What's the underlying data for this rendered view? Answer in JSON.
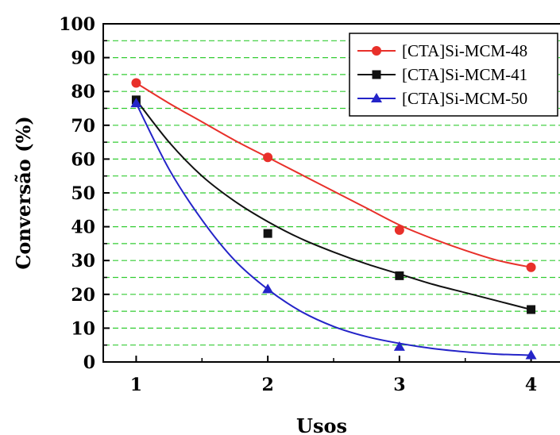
{
  "chart_data": {
    "type": "scatter",
    "xlabel": "Usos",
    "ylabel": "Conversão (%)",
    "xlim": [
      0.75,
      4.25
    ],
    "ylim": [
      0,
      100
    ],
    "x_ticks": [
      "1",
      "2",
      "3",
      "4"
    ],
    "y_ticks": [
      "0",
      "10",
      "20",
      "30",
      "40",
      "50",
      "60",
      "70",
      "80",
      "90",
      "100"
    ],
    "grid": "dashed-green-horizontal",
    "legend_position": "top-right",
    "series": [
      {
        "name": "[CTA]Si-MCM-48",
        "color": "#e8302a",
        "marker": "circle",
        "x": [
          1,
          2,
          3,
          4
        ],
        "y": [
          82.5,
          60.5,
          39,
          28
        ],
        "fit": [
          [
            1,
            82.5
          ],
          [
            1.25,
            76.5
          ],
          [
            1.5,
            71
          ],
          [
            1.75,
            65.5
          ],
          [
            2,
            60.5
          ],
          [
            2.25,
            55.5
          ],
          [
            2.5,
            50.5
          ],
          [
            2.75,
            45.5
          ],
          [
            3,
            40.5
          ],
          [
            3.25,
            36.5
          ],
          [
            3.5,
            33
          ],
          [
            3.75,
            30
          ],
          [
            4,
            28
          ]
        ]
      },
      {
        "name": "[CTA]Si-MCM-41",
        "color": "#111111",
        "marker": "square",
        "x": [
          1,
          2,
          3,
          4
        ],
        "y": [
          77.5,
          38,
          25.5,
          15.5
        ],
        "fit": [
          [
            1,
            77.5
          ],
          [
            1.25,
            65
          ],
          [
            1.5,
            55
          ],
          [
            1.75,
            47.5
          ],
          [
            2,
            41.5
          ],
          [
            2.25,
            36.5
          ],
          [
            2.5,
            32.5
          ],
          [
            2.75,
            29
          ],
          [
            3,
            26
          ],
          [
            3.25,
            23
          ],
          [
            3.5,
            20.5
          ],
          [
            3.75,
            18
          ],
          [
            4,
            15.5
          ]
        ]
      },
      {
        "name": "[CTA]Si-MCM-50",
        "color": "#2424c8",
        "marker": "triangle",
        "x": [
          1,
          2,
          3,
          4
        ],
        "y": [
          76.5,
          21.5,
          4.5,
          2
        ],
        "fit": [
          [
            1,
            76.5
          ],
          [
            1.25,
            57
          ],
          [
            1.5,
            42
          ],
          [
            1.75,
            30
          ],
          [
            2,
            21.5
          ],
          [
            2.25,
            15
          ],
          [
            2.5,
            10.5
          ],
          [
            2.75,
            7.5
          ],
          [
            3,
            5.5
          ],
          [
            3.25,
            4
          ],
          [
            3.5,
            3
          ],
          [
            3.75,
            2.3
          ],
          [
            4,
            2
          ]
        ]
      }
    ]
  }
}
